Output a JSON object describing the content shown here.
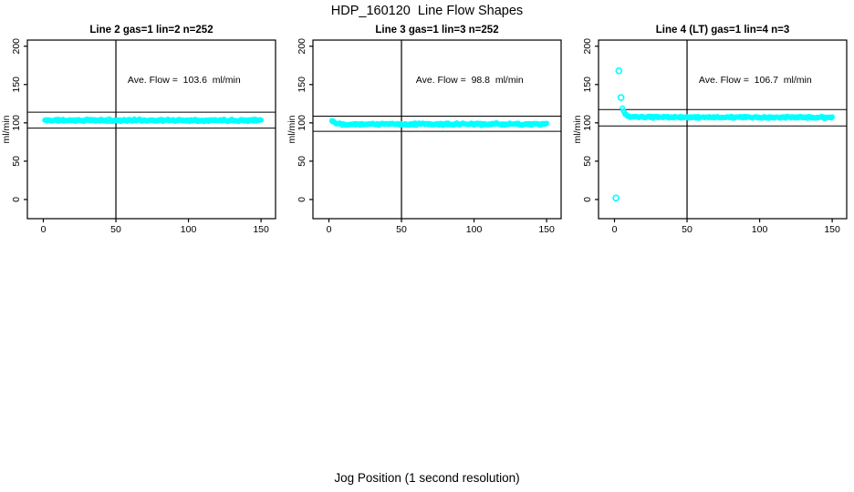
{
  "figure": {
    "title": "HDP_160120  Line Flow Shapes",
    "xlabel": "Jog Position (1 second resolution)",
    "point_color": "#00FFFF",
    "axis_color": "#000000",
    "background": "#FFFFFF"
  },
  "chart_data": [
    {
      "type": "scatter",
      "title": "Line 2 gas=1 lin=2 n=252",
      "n": 252,
      "ave_flow_ml_min": 103.6,
      "annotation": "Ave. Flow =  103.6  ml/min",
      "annotation_xy": [
        97,
        152
      ],
      "ylabel": "ml/min",
      "xticks": [
        0,
        50,
        100,
        150
      ],
      "yticks": [
        0,
        50,
        100,
        150,
        200
      ],
      "xlim": [
        -11,
        160
      ],
      "ylim": [
        -25,
        208
      ],
      "vline_x": 50,
      "hlines_y": [
        114.0,
        93.2
      ],
      "band": {
        "x_start": 1,
        "x_end": 150,
        "points": 252,
        "noise": 1.8,
        "seed": 11,
        "profile": [
          [
            1,
            103.4
          ],
          [
            150,
            103.4
          ]
        ]
      },
      "outliers": []
    },
    {
      "type": "scatter",
      "title": "Line 3 gas=1 lin=3 n=252",
      "n": 252,
      "ave_flow_ml_min": 98.8,
      "annotation": "Ave. Flow =  98.8  ml/min",
      "annotation_xy": [
        97,
        152
      ],
      "ylabel": "ml/min",
      "xticks": [
        0,
        50,
        100,
        150
      ],
      "yticks": [
        0,
        50,
        100,
        150,
        200
      ],
      "xlim": [
        -11,
        160
      ],
      "ylim": [
        -25,
        208
      ],
      "vline_x": 50,
      "hlines_y": [
        108.7,
        88.9
      ],
      "band": {
        "x_start": 2,
        "x_end": 150,
        "points": 252,
        "noise": 1.9,
        "seed": 22,
        "profile": [
          [
            2,
            103.2
          ],
          [
            4,
            100.6
          ],
          [
            7,
            99.0
          ],
          [
            11,
            98.4
          ],
          [
            150,
            98.3
          ]
        ]
      },
      "outliers": []
    },
    {
      "type": "scatter",
      "title": "Line 4 (LT) gas=1 lin=4 n=3",
      "n": 3,
      "ave_flow_ml_min": 106.7,
      "annotation": "Ave. Flow =  106.7  ml/min",
      "annotation_xy": [
        97,
        152
      ],
      "ylabel": "ml/min",
      "xticks": [
        0,
        50,
        100,
        150
      ],
      "yticks": [
        0,
        50,
        100,
        150,
        200
      ],
      "xlim": [
        -11,
        160
      ],
      "ylim": [
        -25,
        208
      ],
      "vline_x": 50,
      "hlines_y": [
        117.4,
        96.0
      ],
      "band": {
        "x_start": 5.5,
        "x_end": 150,
        "points": 240,
        "noise": 1.5,
        "seed": 33,
        "profile": [
          [
            5.5,
            119
          ],
          [
            7,
            112
          ],
          [
            9,
            108.5
          ],
          [
            13,
            107.5
          ],
          [
            150,
            107
          ]
        ]
      },
      "outliers": [
        [
          1,
          2
        ],
        [
          3,
          168
        ],
        [
          4.5,
          133
        ]
      ]
    }
  ]
}
